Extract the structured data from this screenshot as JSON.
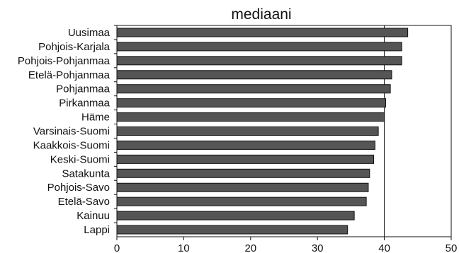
{
  "chart_data": {
    "type": "bar",
    "orientation": "horizontal",
    "title": "mediaani",
    "xlabel": "",
    "ylabel": "",
    "xlim": [
      0,
      50
    ],
    "xticks": [
      0,
      10,
      20,
      30,
      40,
      50
    ],
    "grid": "vertical line at 40",
    "legend": "none",
    "categories": [
      "Uusimaa",
      "Pohjois-Karjala",
      "Pohjois-Pohjanmaa",
      "Etelä-Pohjanmaa",
      "Pohjanmaa",
      "Pirkanmaa",
      "Häme",
      "Varsinais-Suomi",
      "Kaakkois-Suomi",
      "Keski-Suomi",
      "Satakunta",
      "Pohjois-Savo",
      "Etelä-Savo",
      "Kainuu",
      "Lappi"
    ],
    "values": [
      43.5,
      42.6,
      42.6,
      41.1,
      40.9,
      40.2,
      40.0,
      39.1,
      38.6,
      38.4,
      37.8,
      37.6,
      37.3,
      35.5,
      34.5
    ],
    "colors": {
      "bar": "#555555",
      "outline": "#111111"
    }
  }
}
